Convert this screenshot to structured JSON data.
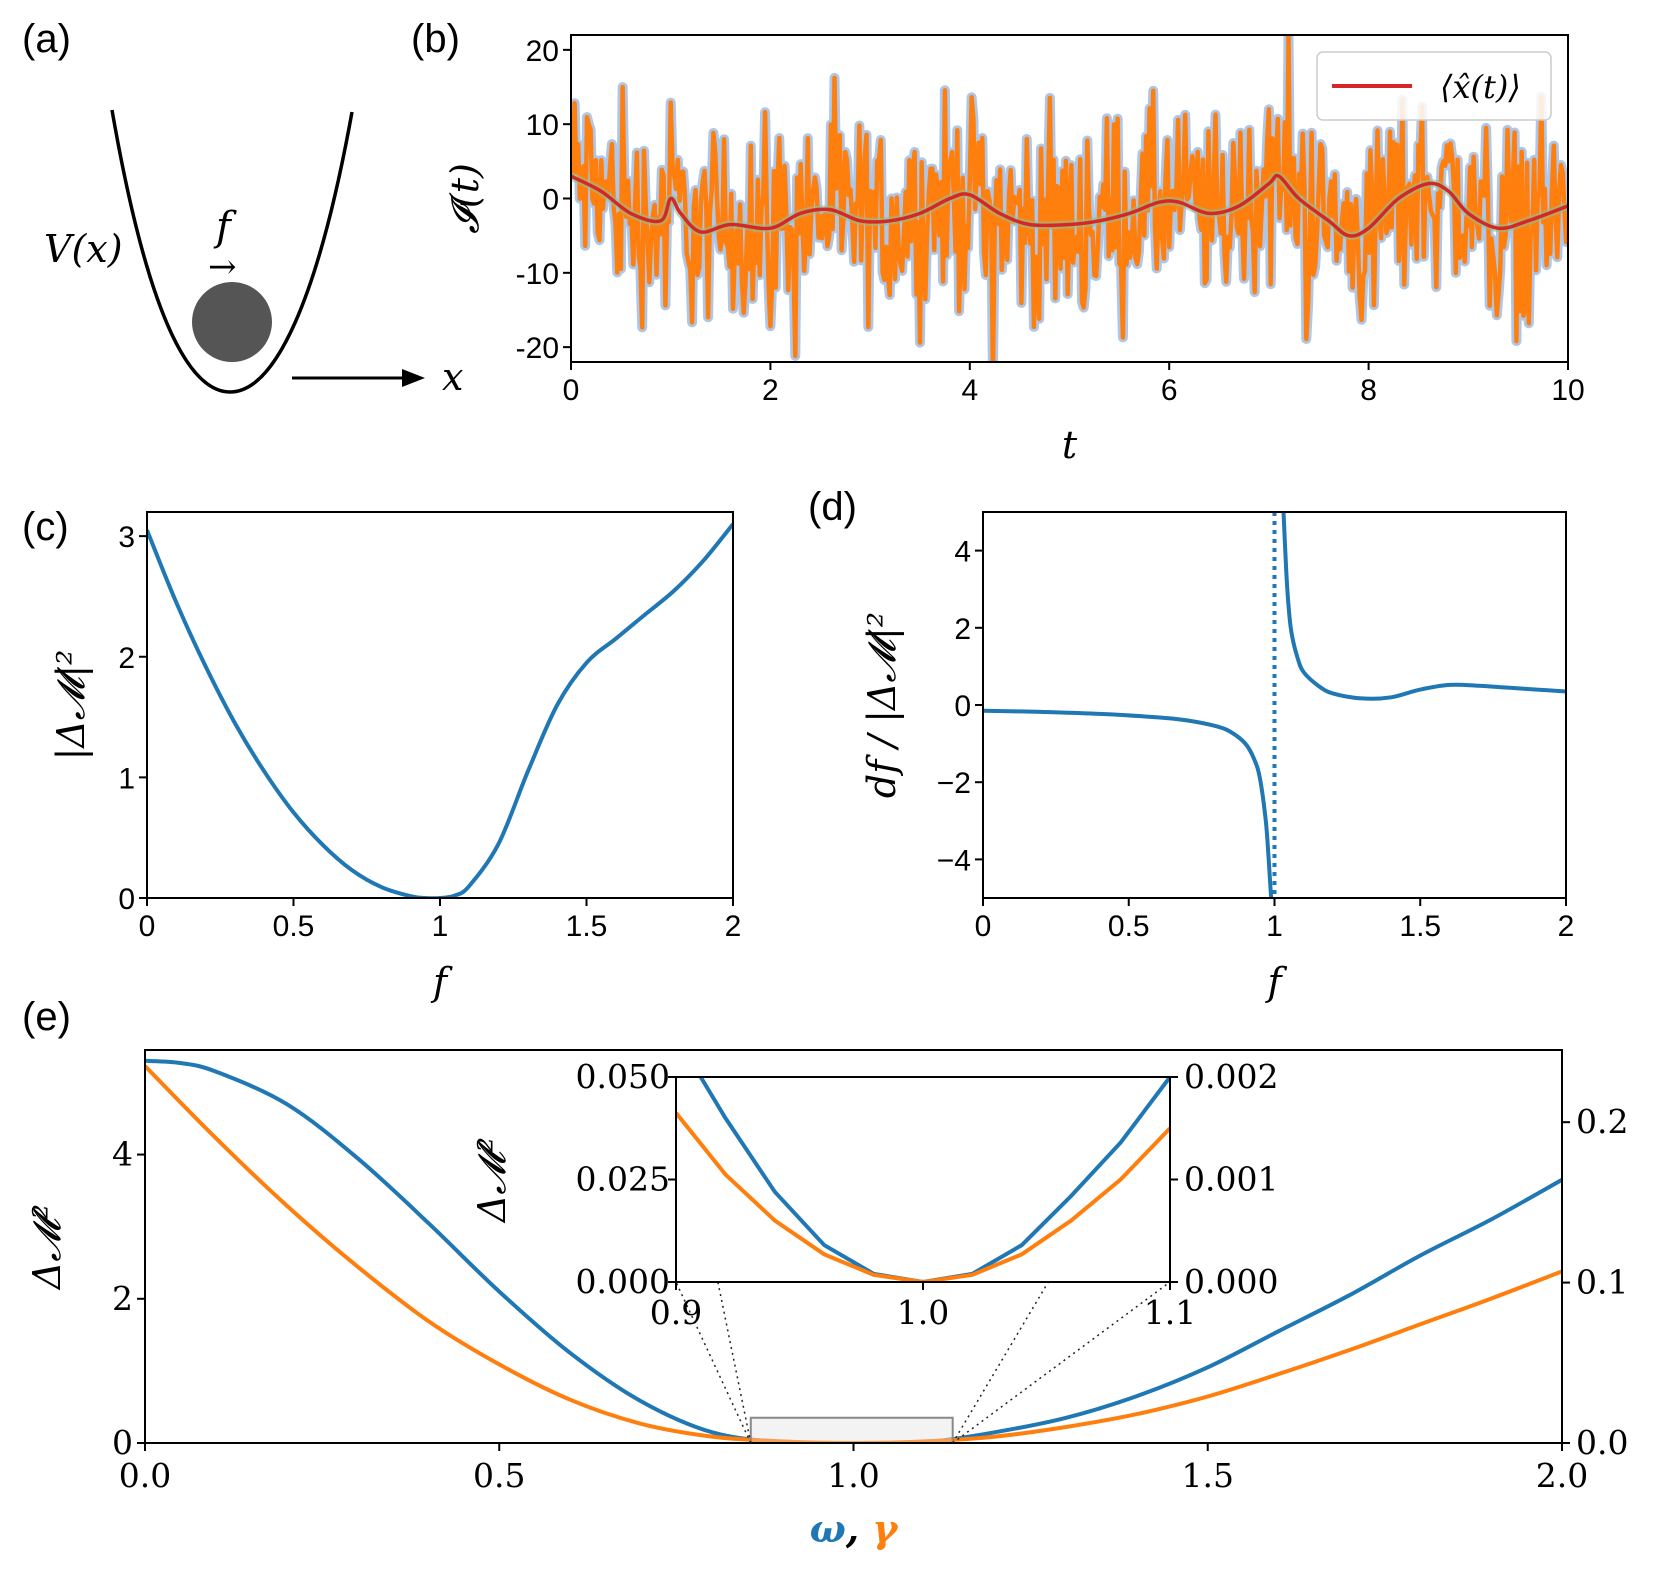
{
  "figure": {
    "panel_labels": [
      "(a)",
      "(b)",
      "(c)",
      "(d)",
      "(e)"
    ]
  },
  "colors": {
    "blue": "#1f77b4",
    "orange": "#ff7f0e",
    "red": "#d62728",
    "light_blue": "#aec7e8",
    "ball": "#555555"
  },
  "schematic": {
    "potential_label": "V(x)",
    "force_label": "f",
    "force_arrow": "→",
    "axis_label": "x"
  },
  "chart_data": [
    {
      "panel": "b",
      "type": "line",
      "xlabel": "t",
      "ylabel": "𝓘(t)",
      "xlim": [
        0,
        10
      ],
      "ylim": [
        -22,
        22
      ],
      "xticks": [
        "0",
        "2",
        "4",
        "6",
        "8",
        "10"
      ],
      "yticks": [
        "20",
        "10",
        "0",
        "-10",
        "-20"
      ],
      "legend": {
        "entries": [
          "⟨x̂(t)⟩"
        ],
        "position": "top-right"
      },
      "series": [
        {
          "name": "𝓘(t)",
          "color": "#ff7f0e",
          "style": "noisy signal, std ≈ 8, light-blue halo",
          "x_range": [
            0,
            10
          ]
        },
        {
          "name": "⟨x̂(t)⟩",
          "color": "#d62728",
          "x": [
            0,
            0.3,
            0.6,
            0.9,
            1.0,
            1.1,
            1.3,
            1.6,
            2.0,
            2.3,
            2.6,
            2.9,
            3.2,
            3.5,
            3.8,
            4.0,
            4.3,
            4.6,
            5.0,
            5.3,
            5.6,
            5.9,
            6.1,
            6.4,
            6.7,
            7.0,
            7.1,
            7.3,
            7.6,
            7.8,
            8.0,
            8.3,
            8.6,
            8.8,
            9.0,
            9.3,
            9.6,
            10.0
          ],
          "y": [
            3,
            1,
            -2,
            -3,
            0,
            -2,
            -4.5,
            -3.5,
            -4,
            -2,
            -1.5,
            -3,
            -3,
            -2,
            0,
            0.5,
            -2,
            -3.5,
            -3.5,
            -3,
            -2,
            -0.5,
            -0.5,
            -2,
            -1,
            2,
            3,
            0,
            -3,
            -5,
            -4,
            0,
            2,
            1,
            -2,
            -4,
            -3,
            -1
          ]
        }
      ]
    },
    {
      "panel": "c",
      "type": "line",
      "xlabel": "f",
      "ylabel": "|Δ𝓜|²",
      "xlim": [
        0,
        2
      ],
      "ylim": [
        0,
        3.2
      ],
      "xticks": [
        "0",
        "0.5",
        "1",
        "1.5",
        "2"
      ],
      "yticks": [
        "0",
        "1",
        "2",
        "3"
      ],
      "series": [
        {
          "name": "|Δ𝓜|²",
          "color": "#1f77b4",
          "x": [
            0,
            0.1,
            0.2,
            0.3,
            0.4,
            0.5,
            0.6,
            0.7,
            0.8,
            0.9,
            0.95,
            1.0,
            1.05,
            1.1,
            1.2,
            1.3,
            1.4,
            1.5,
            1.6,
            1.7,
            1.8,
            1.9,
            2.0
          ],
          "y": [
            3.05,
            2.45,
            1.92,
            1.45,
            1.05,
            0.71,
            0.44,
            0.23,
            0.09,
            0.015,
            0.0,
            0.0,
            0.02,
            0.1,
            0.45,
            1.05,
            1.6,
            1.95,
            2.15,
            2.35,
            2.55,
            2.8,
            3.1
          ]
        }
      ]
    },
    {
      "panel": "d",
      "type": "line",
      "xlabel": "f",
      "ylabel": "df / |Δ𝓜|²",
      "xlim": [
        0,
        2
      ],
      "ylim": [
        -5,
        5
      ],
      "xticks": [
        "0",
        "0.5",
        "1",
        "1.5",
        "2"
      ],
      "yticks": [
        "4",
        "2",
        "0",
        "−2",
        "−4"
      ],
      "vline": {
        "x": 1.0,
        "style": "dotted"
      },
      "series": [
        {
          "name": "left branch",
          "color": "#1f77b4",
          "x": [
            0,
            0.2,
            0.4,
            0.6,
            0.7,
            0.8,
            0.85,
            0.9,
            0.93,
            0.95,
            0.97,
            0.98,
            0.99
          ],
          "y": [
            -0.15,
            -0.18,
            -0.23,
            -0.32,
            -0.4,
            -0.55,
            -0.7,
            -1.0,
            -1.4,
            -1.9,
            -3.0,
            -4.0,
            -5.2
          ]
        },
        {
          "name": "right branch",
          "color": "#1f77b4",
          "x": [
            1.03,
            1.04,
            1.05,
            1.06,
            1.08,
            1.1,
            1.15,
            1.2,
            1.3,
            1.4,
            1.5,
            1.6,
            1.7,
            1.8,
            1.9,
            2.0
          ],
          "y": [
            5.2,
            3.5,
            2.4,
            1.8,
            1.2,
            0.85,
            0.5,
            0.3,
            0.17,
            0.2,
            0.4,
            0.52,
            0.5,
            0.45,
            0.4,
            0.35
          ]
        }
      ]
    },
    {
      "panel": "e",
      "type": "line",
      "xlabel_parts": [
        "ω",
        ", ",
        "γ"
      ],
      "ylabel": "Δ𝓜²",
      "xlim": [
        0,
        2
      ],
      "ylim_left": [
        0,
        5.45
      ],
      "ylim_right": [
        0,
        0.245
      ],
      "xticks": [
        "0.0",
        "0.5",
        "1.0",
        "1.5",
        "2.0"
      ],
      "yticks_left": [
        "0",
        "2",
        "4"
      ],
      "yticks_right": [
        "0.0",
        "0.1",
        "0.2"
      ],
      "series": [
        {
          "name": "ω",
          "color": "#1f77b4",
          "axis": "left",
          "x": [
            0,
            0.05,
            0.1,
            0.2,
            0.3,
            0.4,
            0.5,
            0.6,
            0.7,
            0.8,
            0.9,
            1.0,
            1.1,
            1.2,
            1.3,
            1.4,
            1.5,
            1.6,
            1.7,
            1.8,
            1.9,
            2.0
          ],
          "y": [
            5.3,
            5.27,
            5.15,
            4.7,
            3.95,
            3.05,
            2.1,
            1.25,
            0.58,
            0.15,
            0.01,
            0.0,
            0.01,
            0.15,
            0.35,
            0.65,
            1.05,
            1.55,
            2.05,
            2.6,
            3.1,
            3.65
          ]
        },
        {
          "name": "γ",
          "color": "#ff7f0e",
          "axis": "right",
          "x": [
            0,
            0.1,
            0.2,
            0.3,
            0.4,
            0.5,
            0.6,
            0.7,
            0.8,
            0.9,
            1.0,
            1.1,
            1.2,
            1.3,
            1.4,
            1.5,
            1.6,
            1.7,
            1.8,
            1.9,
            2.0
          ],
          "y": [
            0.235,
            0.19,
            0.148,
            0.11,
            0.076,
            0.049,
            0.027,
            0.012,
            0.004,
            0.001,
            0.0,
            0.001,
            0.004,
            0.01,
            0.018,
            0.029,
            0.043,
            0.058,
            0.074,
            0.09,
            0.107
          ]
        }
      ],
      "zoom_box": {
        "x": [
          0.855,
          1.14
        ],
        "y": [
          0,
          0.35
        ]
      },
      "inset": {
        "xlim": [
          0.9,
          1.1
        ],
        "ylim_left": [
          0,
          0.05
        ],
        "ylim_right": [
          0,
          0.002
        ],
        "xticks": [
          "0.9",
          "1.0",
          "1.1"
        ],
        "yticks_left": [
          "0.000",
          "0.025",
          "0.050"
        ],
        "yticks_right": [
          "0.000",
          "0.001",
          "0.002"
        ],
        "ylabel": "Δ𝓜²",
        "series": [
          {
            "name": "ω",
            "color": "#1f77b4",
            "axis": "left",
            "x": [
              0.91,
              0.92,
              0.94,
              0.96,
              0.98,
              1.0,
              1.02,
              1.04,
              1.06,
              1.08,
              1.1
            ],
            "y": [
              0.05,
              0.04,
              0.022,
              0.009,
              0.002,
              0.0,
              0.002,
              0.009,
              0.021,
              0.034,
              0.05
            ]
          },
          {
            "name": "γ",
            "color": "#ff7f0e",
            "axis": "right",
            "x": [
              0.9,
              0.92,
              0.94,
              0.96,
              0.98,
              1.0,
              1.02,
              1.04,
              1.06,
              1.08,
              1.1
            ],
            "y": [
              0.00165,
              0.00105,
              0.0006,
              0.00027,
              7e-05,
              0.0,
              7e-05,
              0.00027,
              0.0006,
              0.001,
              0.0015
            ]
          }
        ]
      }
    }
  ]
}
